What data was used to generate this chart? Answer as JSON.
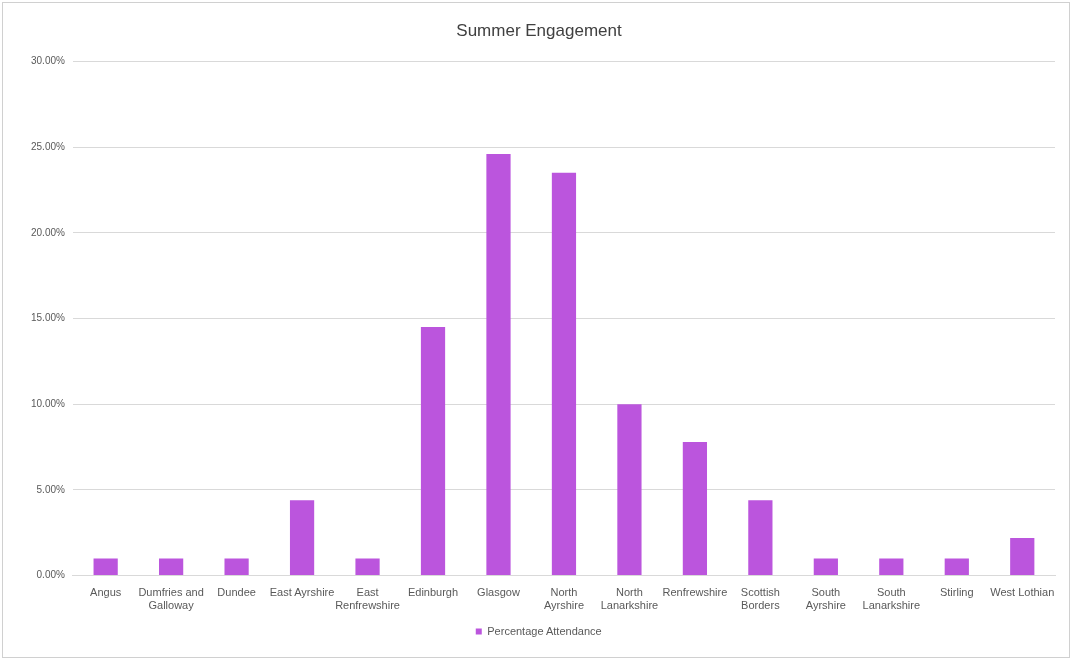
{
  "chart_data": {
    "type": "bar",
    "title": "Summer Engagement",
    "categories": [
      "Angus",
      "Dumfries and Galloway",
      "Dundee",
      "East Ayrshire",
      "East Renfrewshire",
      "Edinburgh",
      "Glasgow",
      "North Ayrshire",
      "North Lanarkshire",
      "Renfrewshire",
      "Scottish Borders",
      "South Ayrshire",
      "South Lanarkshire",
      "Stirling",
      "West Lothian"
    ],
    "series": [
      {
        "name": "Percentage Attendance",
        "color": "#bb55dd",
        "values": [
          1.0,
          1.0,
          1.0,
          4.4,
          1.0,
          14.5,
          24.6,
          23.5,
          10.0,
          7.8,
          4.4,
          1.0,
          1.0,
          1.0,
          2.2
        ]
      }
    ],
    "ylim": [
      0,
      30
    ],
    "yticks": [
      {
        "value": 0,
        "label": "0.00%"
      },
      {
        "value": 5,
        "label": "5.00%"
      },
      {
        "value": 10,
        "label": "10.00%"
      },
      {
        "value": 15,
        "label": "15.00%"
      },
      {
        "value": 20,
        "label": "20.00%"
      },
      {
        "value": 25,
        "label": "25.00%"
      },
      {
        "value": 30,
        "label": "30.00%"
      }
    ],
    "grid": "y",
    "legend": "bottom"
  }
}
